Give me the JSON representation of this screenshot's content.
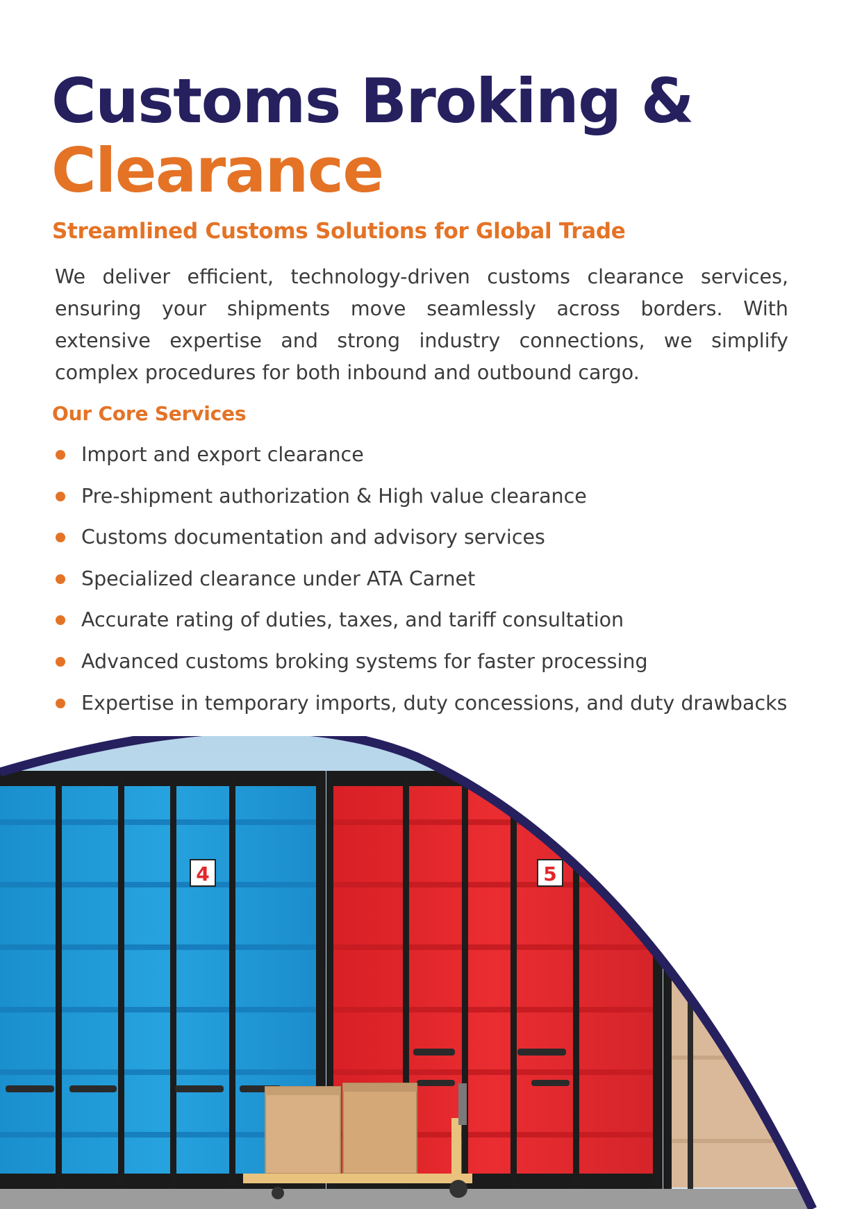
{
  "header": {
    "title_line1": "Customs Broking &",
    "title_line2": "Clearance",
    "subtitle": "Streamlined Customs Solutions for Global Trade"
  },
  "intro": {
    "text": "We deliver efficient, technology-driven customs clearance services, ensuring your shipments move seamlessly across borders. With extensive expertise and strong industry connections, we simplify complex procedures for both inbound and outbound cargo."
  },
  "services": {
    "heading": "Our Core Services",
    "items": [
      "Import and export clearance",
      "Pre-shipment authorization & High value clearance",
      "Customs documentation and advisory services",
      "Specialized clearance under ATA Carnet",
      "Accurate rating of duties, taxes, and tariff consultation",
      "Advanced customs broking systems for faster processing",
      "Expertise in temporary imports, duty concessions, and duty drawbacks"
    ]
  },
  "image": {
    "container_labels": [
      "4",
      "5"
    ]
  },
  "colors": {
    "navy": "#26205f",
    "orange": "#e47326",
    "body_text": "#3b3b3b",
    "container_blue": "#1e9ad7",
    "container_red": "#e2262c",
    "container_beige": "#d9b99a"
  }
}
